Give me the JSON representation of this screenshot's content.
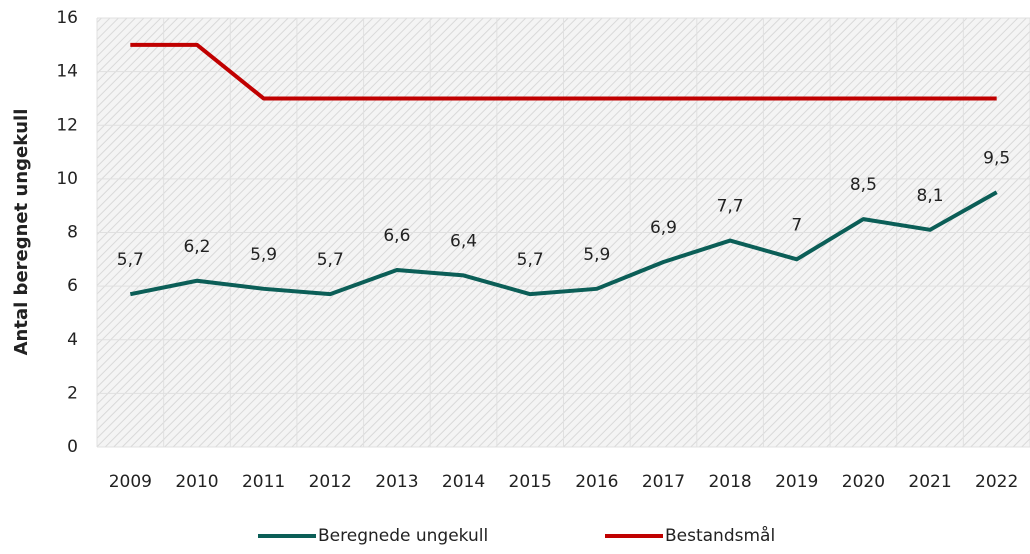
{
  "chart_data": {
    "type": "line",
    "y_label": "Antal beregnet ungekull",
    "categories": [
      "2009",
      "2010",
      "2011",
      "2012",
      "2013",
      "2014",
      "2015",
      "2016",
      "2017",
      "2018",
      "2019",
      "2020",
      "2021",
      "2022"
    ],
    "series": [
      {
        "name": "Beregnede ungekull",
        "color": "#0b5e57",
        "values": [
          5.7,
          6.2,
          5.9,
          5.7,
          6.6,
          6.4,
          5.7,
          5.9,
          6.9,
          7.7,
          7,
          8.5,
          8.1,
          9.5
        ],
        "value_labels": [
          "5,7",
          "6,2",
          "5,9",
          "5,7",
          "6,6",
          "6,4",
          "5,7",
          "5,9",
          "6,9",
          "7,7",
          "7",
          "8,5",
          "8,1",
          "9,5"
        ]
      },
      {
        "name": "Bestandsmål",
        "color": "#c00000",
        "values": [
          15,
          15,
          13,
          13,
          13,
          13,
          13,
          13,
          13,
          13,
          13,
          13,
          13,
          13
        ]
      }
    ],
    "ylim": [
      0,
      16
    ],
    "yticks": [
      0,
      2,
      4,
      6,
      8,
      10,
      12,
      14,
      16
    ],
    "grid": true,
    "legend": "bottom"
  }
}
